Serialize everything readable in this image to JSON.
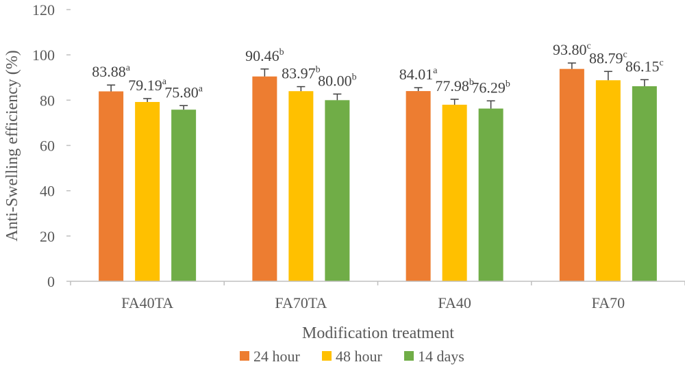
{
  "chart_data": {
    "type": "bar",
    "title": "",
    "xlabel": "Modification treatment",
    "ylabel": "Anti-Swelling efficiency (%)",
    "ylim": [
      0,
      120
    ],
    "yticks": [
      0,
      20,
      40,
      60,
      80,
      100,
      120
    ],
    "categories": [
      "FA40TA",
      "FA70TA",
      "FA40",
      "FA70"
    ],
    "legend_position": "bottom",
    "grid": false,
    "series": [
      {
        "name": "24 hour",
        "color": "#ED7D31",
        "values": [
          83.88,
          90.46,
          84.01,
          93.8
        ],
        "errors": [
          2.8,
          3.3,
          1.5,
          2.6
        ],
        "labels": [
          "83.88",
          "90.46",
          "84.01",
          "93.80"
        ],
        "letters": [
          "a",
          "b",
          "a",
          "c"
        ]
      },
      {
        "name": "48 hour",
        "color": "#FFC000",
        "values": [
          79.19,
          83.97,
          77.98,
          88.79
        ],
        "errors": [
          1.5,
          2.0,
          2.4,
          3.9
        ],
        "labels": [
          "79.19",
          "83.97",
          "77.98",
          "88.79"
        ],
        "letters": [
          "a",
          "b",
          "b",
          "c"
        ]
      },
      {
        "name": "14 days",
        "color": "#70AD47",
        "values": [
          75.8,
          80.0,
          76.29,
          86.15
        ],
        "errors": [
          1.8,
          2.7,
          3.4,
          2.9
        ],
        "labels": [
          "75.80",
          "80.00",
          "76.29",
          "86.15"
        ],
        "letters": [
          "a",
          "b",
          "b",
          "c"
        ]
      }
    ]
  }
}
